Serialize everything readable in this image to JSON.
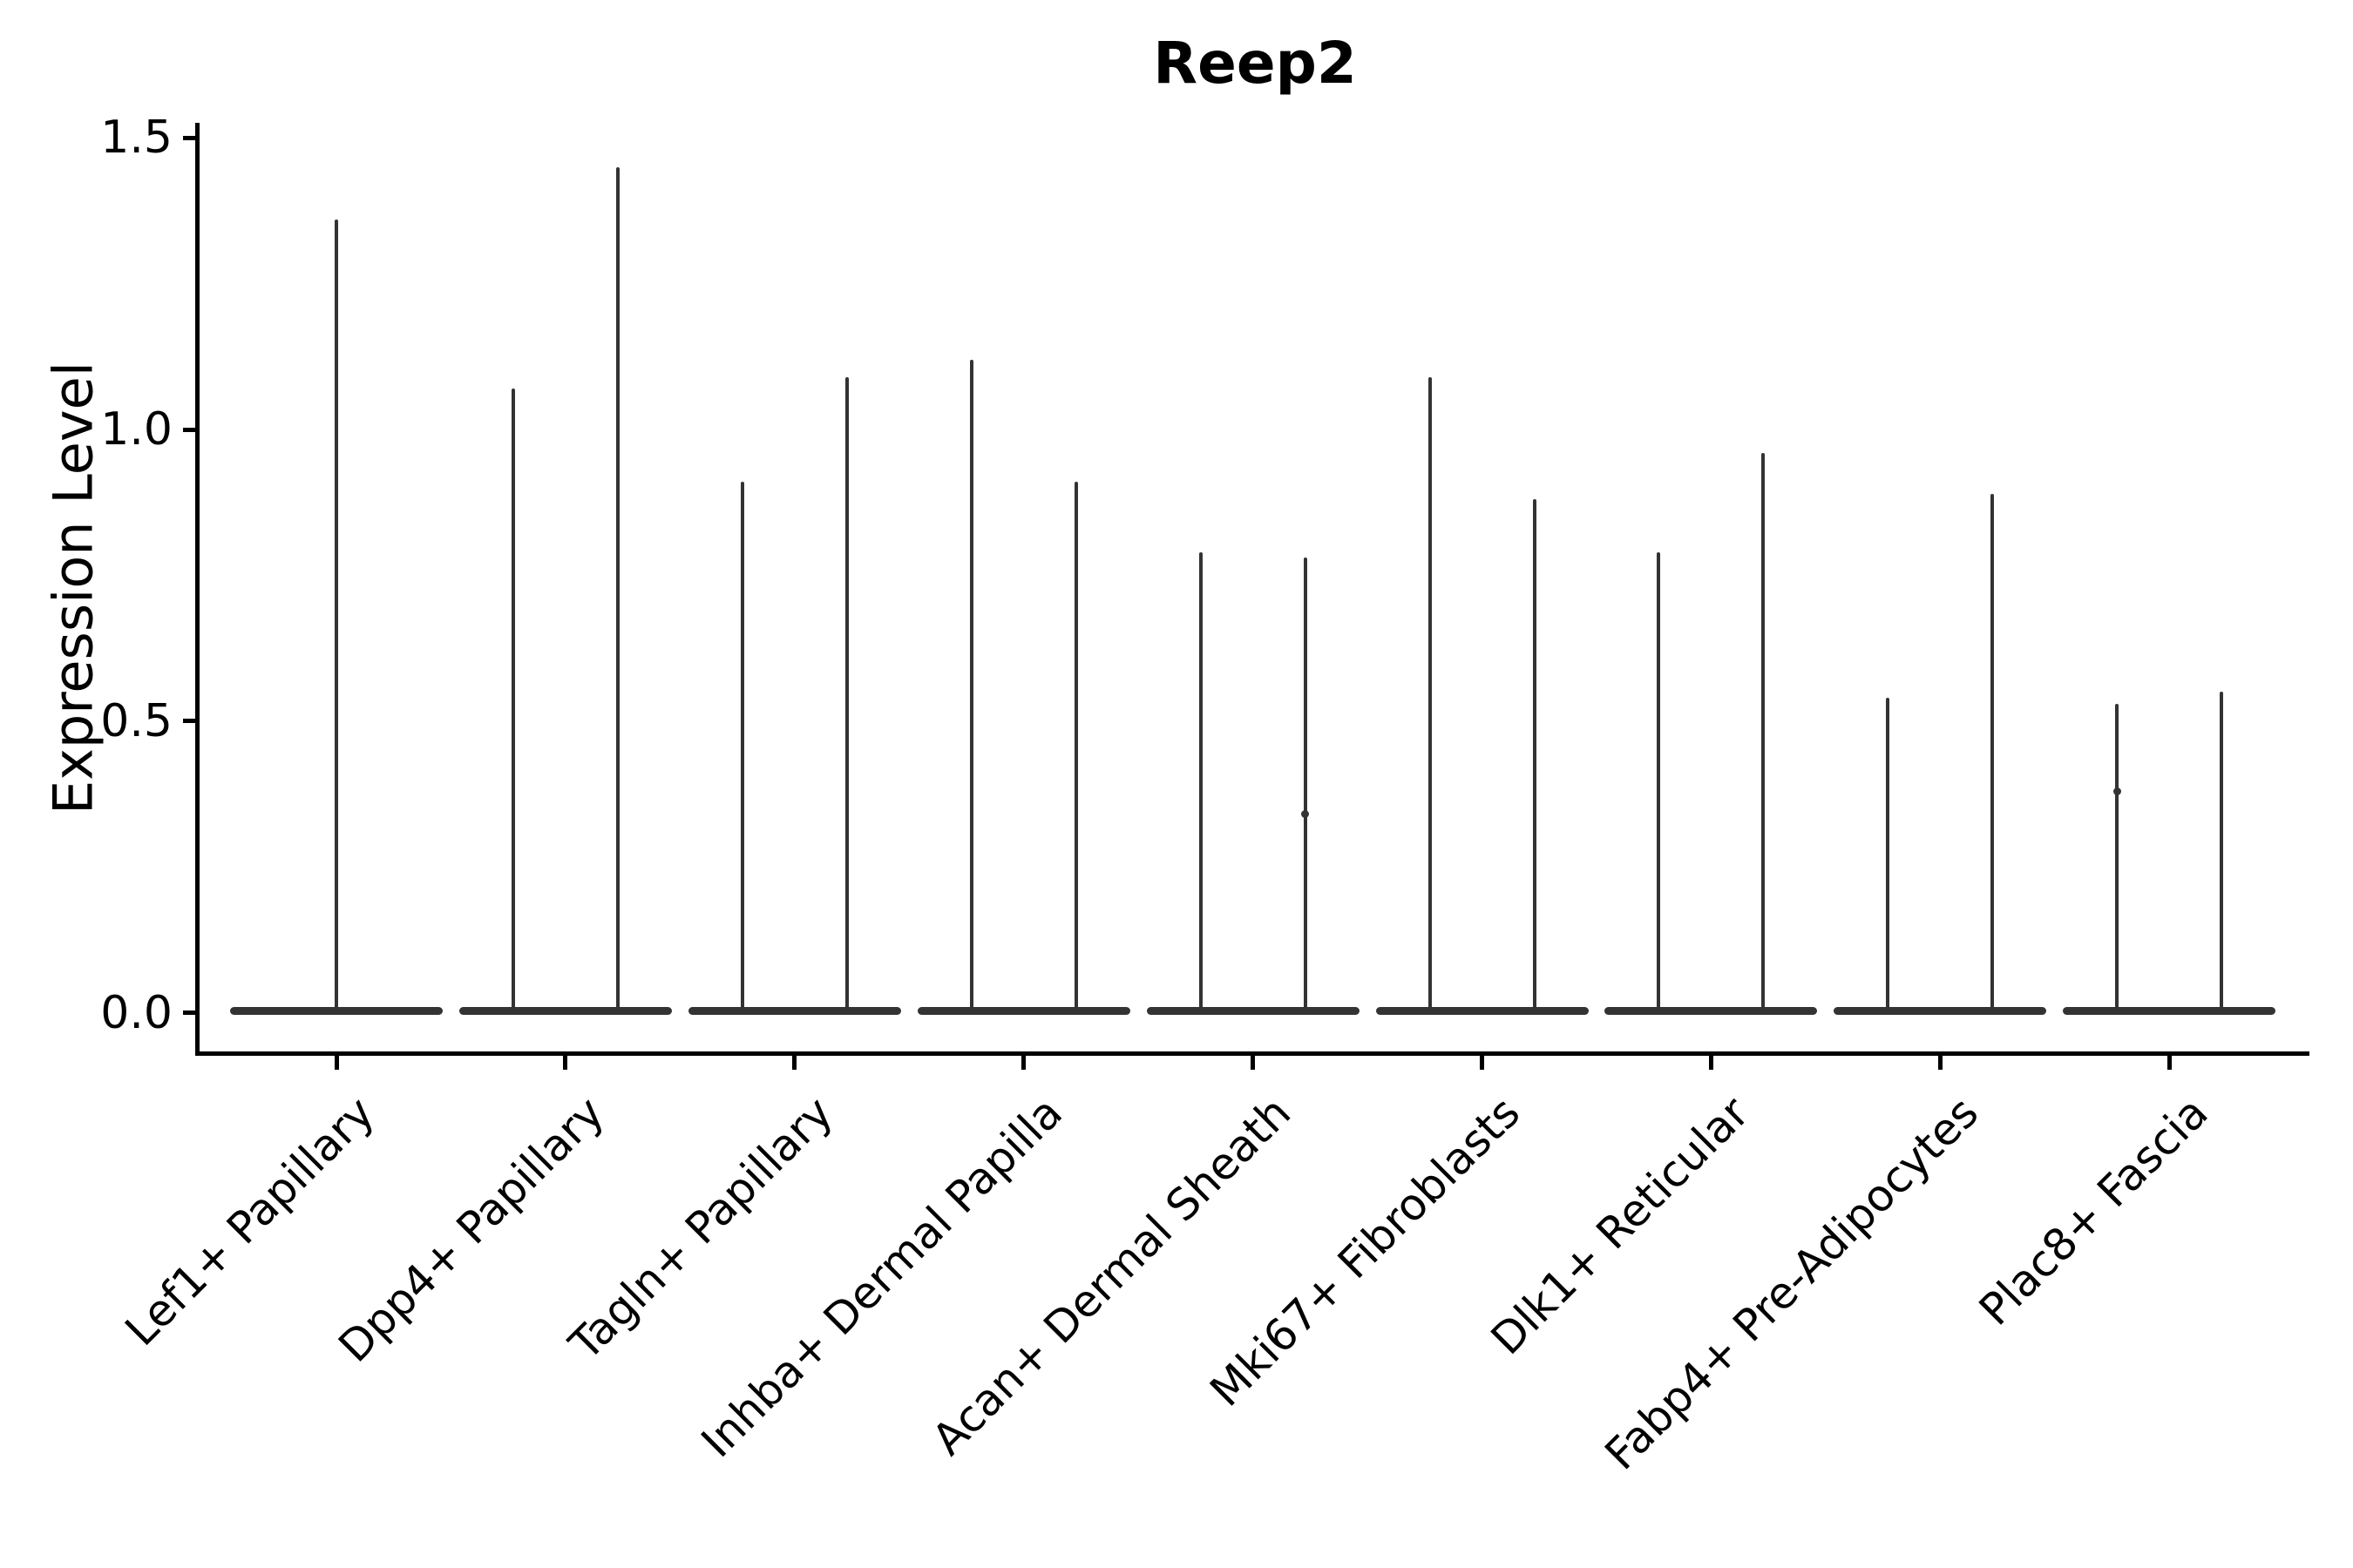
{
  "chart_data": {
    "type": "violin",
    "title": "Reep2",
    "ylabel": "Expression Level",
    "xlabel": "",
    "grid": false,
    "legend": false,
    "background": "#ffffff",
    "colors": {
      "ink": "#000000",
      "violin": "#333333"
    },
    "y_ticks": [
      "0.0",
      "0.5",
      "1.0",
      "1.5"
    ],
    "ylim": [
      -0.07,
      1.53
    ],
    "categories": [
      "Lef1+ Papillary",
      "Dpp4+ Papillary",
      "Tagln+ Papillary",
      "Inhba+ Dermal Papilla",
      "Acan+ Dermal Sheath",
      "Mki67+ Fibroblasts",
      "Dlk1+ Reticular",
      "Fabp4+ Pre-Adipocytes",
      "Plac8+ Fascia"
    ],
    "violins": [
      {
        "category": "Lef1+ Papillary",
        "maxima": [
          1.36
        ]
      },
      {
        "category": "Dpp4+ Papillary",
        "maxima": [
          1.07,
          1.45
        ]
      },
      {
        "category": "Tagln+ Papillary",
        "maxima": [
          0.91,
          1.09
        ]
      },
      {
        "category": "Inhba+ Dermal Papilla",
        "maxima": [
          1.12,
          0.91
        ]
      },
      {
        "category": "Acan+ Dermal Sheath",
        "maxima": [
          0.79,
          0.78
        ]
      },
      {
        "category": "Mki67+ Fibroblasts",
        "maxima": [
          1.09,
          0.88
        ]
      },
      {
        "category": "Dlk1+ Reticular",
        "maxima": [
          0.79,
          0.96
        ]
      },
      {
        "category": "Fabp4+ Pre-Adipocytes",
        "maxima": [
          0.54,
          0.89
        ]
      },
      {
        "category": "Plac8+ Fascia",
        "maxima": [
          0.53,
          0.55
        ]
      }
    ],
    "minor_bumps": [
      {
        "category": "Acan+ Dermal Sheath",
        "violin_index": 1,
        "value": 0.34
      },
      {
        "category": "Plac8+ Fascia",
        "violin_index": 0,
        "value": 0.38
      }
    ]
  }
}
